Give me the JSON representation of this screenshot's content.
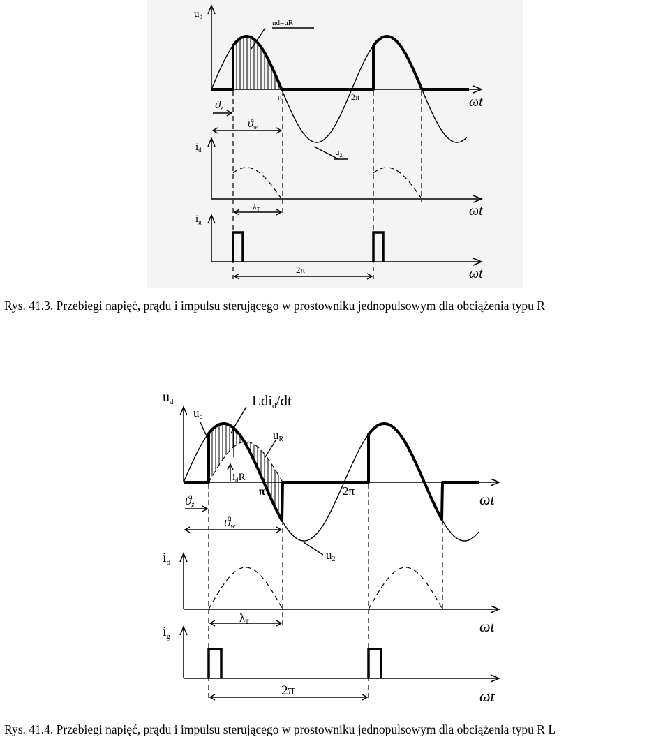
{
  "figure1": {
    "caption": "Rys. 41.3. Przebiegi napięć, prądu i impulsu sterującego w prostowniku jednopulsowym dla obciążenia typu R",
    "labels": {
      "ud": "u",
      "ud_sub": "d",
      "ud_eq_uR": "ud=uR",
      "pi": "π",
      "two_pi": "2π",
      "omega_t": "ωt",
      "theta_z": "ϑ",
      "theta_z_sub": "z",
      "theta_w": "ϑ",
      "theta_w_sub": "w",
      "u2": "u",
      "u2_sub": "2",
      "id": "i",
      "id_sub": "d",
      "lambda_T": "λ",
      "lambda_T_sub": "T",
      "ig": "i",
      "ig_sub": "g",
      "two_pi_period": "2π"
    }
  },
  "figure2": {
    "caption": "Rys. 41.4. Przebiegi napięć, prądu i impulsu sterującego w prostowniku jednopulsowym dla obciążenia typu R L",
    "labels": {
      "ud": "u",
      "ud_sub": "d",
      "ud_curve": "u",
      "ud_curve_sub": "d",
      "L_did_dt": "Ldi",
      "L_did_dt_sub": "d",
      "L_did_dt_tail": "/dt",
      "uR": "u",
      "uR_sub": "R",
      "idR": "i",
      "idR_sub": "d",
      "idR_tail": "R",
      "pi": "π",
      "two_pi": "2π",
      "omega_t": "ωt",
      "theta_z": "ϑ",
      "theta_z_sub": "z",
      "theta_w": "ϑ",
      "theta_w_sub": "w",
      "u2": "u",
      "u2_sub": "2",
      "id": "i",
      "id_sub": "d",
      "lambda_T": "λ",
      "lambda_T_sub": "T",
      "ig": "i",
      "ig_sub": "g",
      "two_pi_period": "2π"
    }
  }
}
